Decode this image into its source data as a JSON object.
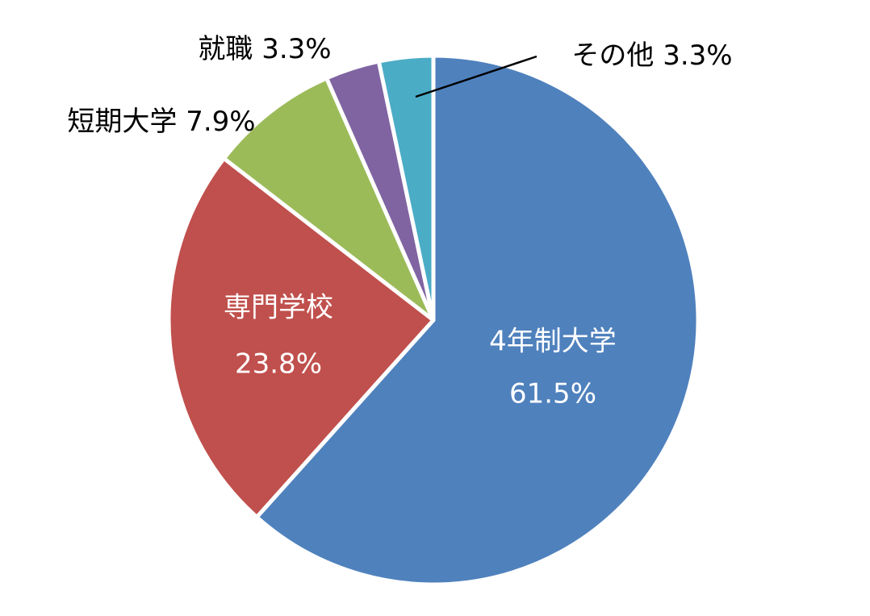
{
  "chart_data": {
    "type": "pie",
    "categories": [
      "4年制大学",
      "専門学校",
      "短期大学",
      "就職",
      "その他"
    ],
    "values": [
      61.5,
      23.8,
      7.9,
      3.3,
      3.3
    ],
    "value_labels": [
      "61.5%",
      "23.8%",
      "7.9%",
      "3.3%",
      "3.3%"
    ],
    "colors": [
      "#4f81bd",
      "#c0504d",
      "#9bbb59",
      "#8064a2",
      "#4bacc6"
    ]
  }
}
